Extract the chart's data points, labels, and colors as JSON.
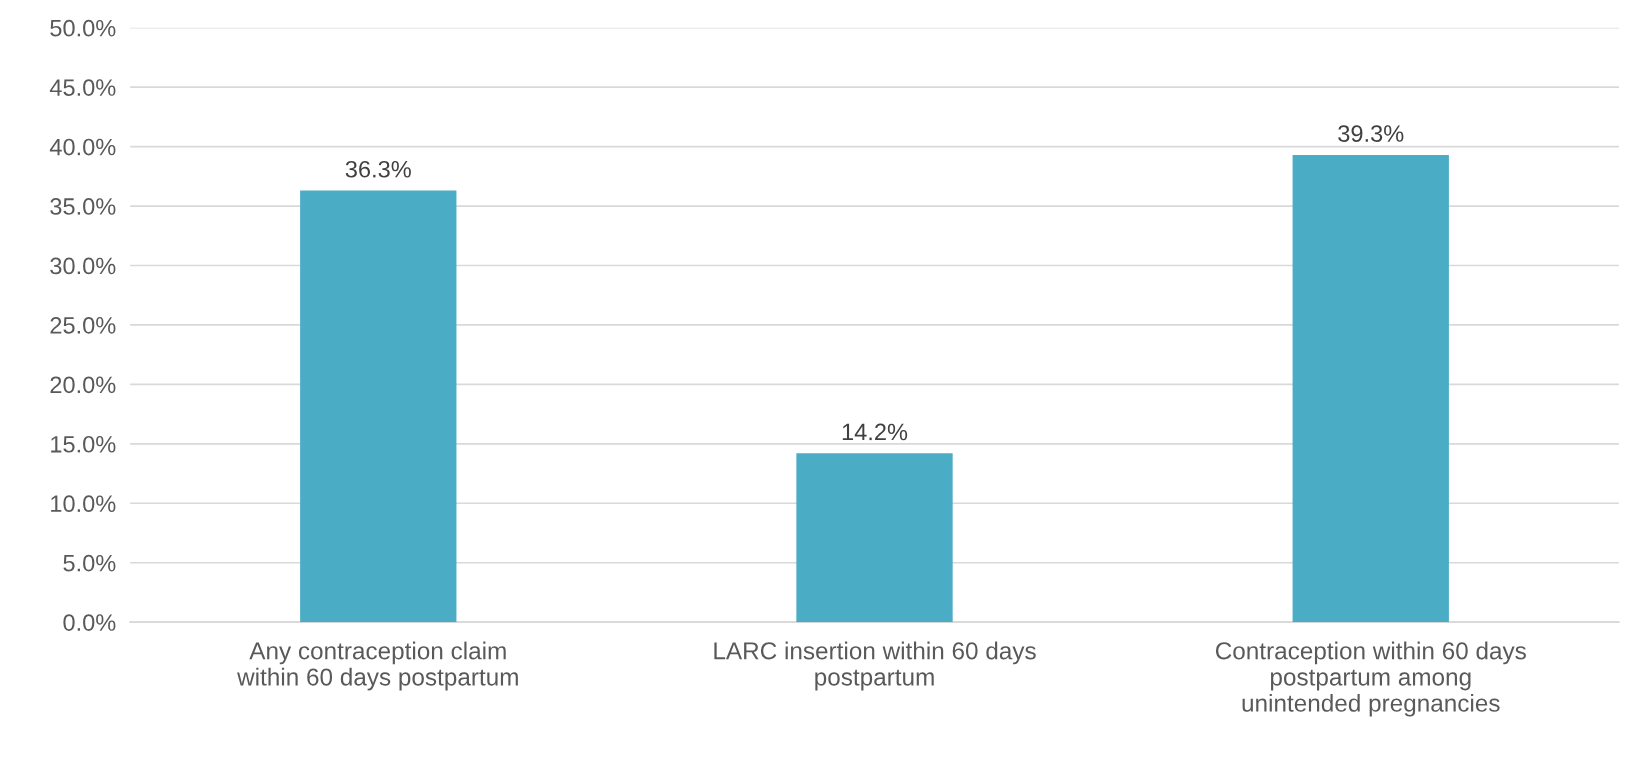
{
  "chart_data": {
    "type": "bar",
    "categories": [
      "Any contraception claim\nwithin 60 days postpartum",
      "LARC insertion within 60 days\npostpartum",
      "Contraception within 60 days\npostpartum among\nunintended pregnancies"
    ],
    "values": [
      36.3,
      14.2,
      39.3
    ],
    "color": "#4bacc6",
    "value_labels": [
      "36.3%",
      "14.2%",
      "39.3%"
    ],
    "ylim": [
      0,
      50
    ],
    "yticks": [
      {
        "value": 0,
        "label": "0.0%"
      },
      {
        "value": 5,
        "label": "5.0%"
      },
      {
        "value": 10,
        "label": "10.0%"
      },
      {
        "value": 15,
        "label": "15.0%"
      },
      {
        "value": 20,
        "label": "20.0%"
      },
      {
        "value": 25,
        "label": "25.0%"
      },
      {
        "value": 30,
        "label": "30.0%"
      },
      {
        "value": 35,
        "label": "35.0%"
      },
      {
        "value": 40,
        "label": "40.0%"
      },
      {
        "value": 45,
        "label": "45.0%"
      },
      {
        "value": 50,
        "label": "50.0%"
      }
    ],
    "grid": "y"
  }
}
